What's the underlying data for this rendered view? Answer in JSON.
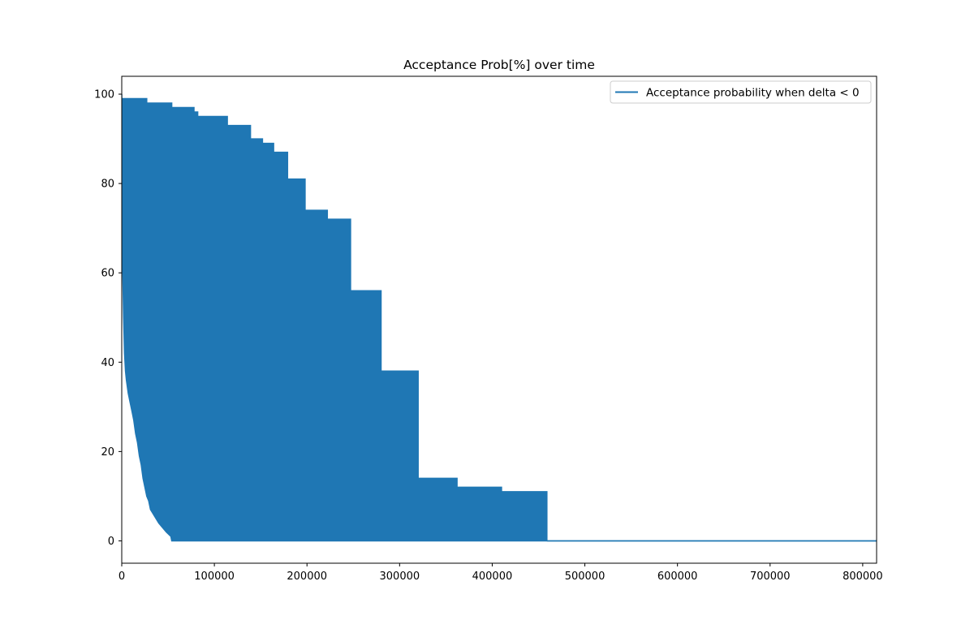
{
  "chart_data": {
    "type": "area",
    "title": "Acceptance Prob[%] over time",
    "xlabel": "",
    "ylabel": "",
    "xlim": [
      0,
      815000
    ],
    "ylim": [
      -5,
      104
    ],
    "x_ticks": [
      0,
      100000,
      200000,
      300000,
      400000,
      500000,
      600000,
      700000,
      800000
    ],
    "y_ticks": [
      0,
      20,
      40,
      60,
      80,
      100
    ],
    "grid": false,
    "legend_position": "top-right",
    "series": [
      {
        "name": "Acceptance probability when delta < 0",
        "color": "#1f77b4",
        "upper_envelope": {
          "x": [
            0,
            27000,
            27000,
            54000,
            54000,
            78000,
            78000,
            82000,
            82000,
            114000,
            114000,
            139000,
            139000,
            152000,
            152000,
            164000,
            164000,
            179000,
            179000,
            198000,
            198000,
            222000,
            222000,
            247000,
            247000,
            280000,
            280000,
            320000,
            320000,
            362000,
            362000,
            410000,
            410000,
            459000,
            459000,
            815000
          ],
          "y": [
            99,
            99,
            98,
            98,
            97,
            97,
            96,
            96,
            95,
            95,
            93,
            93,
            90,
            90,
            89,
            89,
            87,
            87,
            81,
            81,
            74,
            74,
            72,
            72,
            56,
            56,
            38,
            38,
            14,
            14,
            12,
            12,
            11,
            11,
            0,
            0
          ]
        },
        "lower_envelope": {
          "x": [
            0,
            1000,
            2000,
            3000,
            4000,
            5000,
            7000,
            9000,
            11000,
            13000,
            15000,
            17000,
            19000,
            21000,
            23000,
            25000,
            27000,
            29000,
            31000,
            34000,
            37000,
            40000,
            44000,
            48000,
            53000,
            54000,
            815000
          ],
          "y": [
            100,
            62,
            50,
            42,
            38,
            36,
            33,
            31,
            29,
            27,
            24,
            22,
            19,
            17,
            14,
            12,
            10,
            9,
            7,
            6,
            5,
            4,
            3,
            2,
            1,
            0,
            0
          ]
        }
      }
    ]
  }
}
